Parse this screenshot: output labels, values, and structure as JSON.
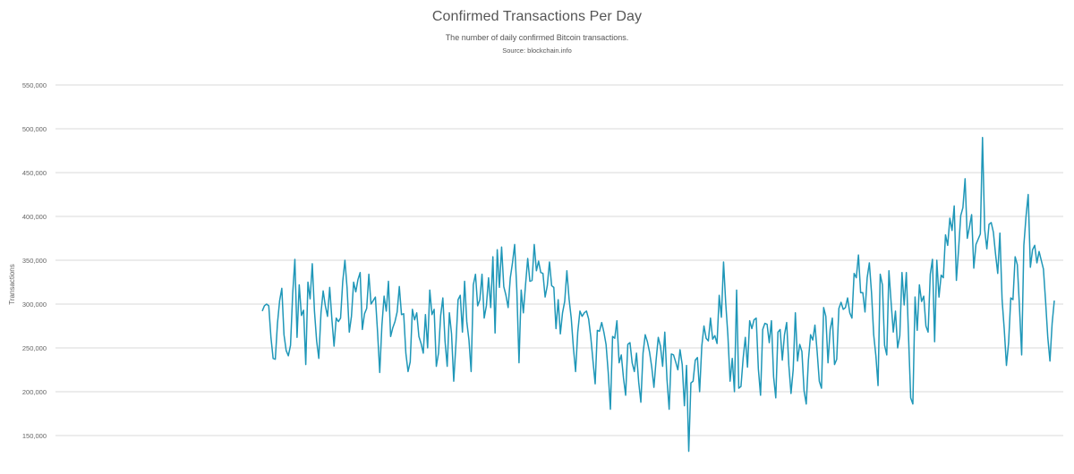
{
  "chart_data": {
    "type": "line",
    "title": "Confirmed Transactions Per Day",
    "subtitle": "The number of daily confirmed Bitcoin transactions.",
    "source": "Source: blockchain.info",
    "ylabel": "Transactions",
    "xlabel": "",
    "ylim": [
      130000,
      560000
    ],
    "yticks": [
      150000,
      200000,
      250000,
      300000,
      350000,
      400000,
      450000,
      500000,
      550000
    ],
    "ytick_labels": [
      "150,000",
      "200,000",
      "250,000",
      "300,000",
      "350,000",
      "400,000",
      "450,000",
      "500,000",
      "550,000"
    ],
    "grid": true,
    "line_color": "#1f97b8",
    "series": [
      {
        "values": [
          292000,
          298000,
          300000,
          298000,
          262000,
          238000,
          237000,
          278000,
          304000,
          318000,
          265000,
          247000,
          241000,
          253000,
          312000,
          351000,
          262000,
          322000,
          287000,
          293000,
          231000,
          325000,
          306000,
          346000,
          292000,
          258000,
          238000,
          290000,
          315000,
          298000,
          286000,
          319000,
          283000,
          252000,
          284000,
          280000,
          284000,
          326000,
          350000,
          318000,
          268000,
          286000,
          325000,
          314000,
          328000,
          336000,
          271000,
          289000,
          295000,
          334000,
          300000,
          304000,
          308000,
          268000,
          222000,
          276000,
          309000,
          292000,
          326000,
          263000,
          273000,
          280000,
          291000,
          320000,
          288000,
          289000,
          244000,
          223000,
          234000,
          294000,
          282000,
          290000,
          263000,
          255000,
          244000,
          288000,
          250000,
          316000,
          288000,
          294000,
          229000,
          244000,
          287000,
          307000,
          258000,
          229000,
          290000,
          266000,
          212000,
          254000,
          305000,
          310000,
          268000,
          326000,
          280000,
          259000,
          223000,
          322000,
          334000,
          298000,
          305000,
          334000,
          284000,
          298000,
          330000,
          296000,
          354000,
          267000,
          362000,
          319000,
          365000,
          320000,
          310000,
          296000,
          330000,
          347000,
          368000,
          316000,
          233000,
          316000,
          290000,
          322000,
          352000,
          326000,
          327000,
          368000,
          338000,
          349000,
          336000,
          335000,
          308000,
          321000,
          348000,
          321000,
          319000,
          272000,
          305000,
          266000,
          290000,
          303000,
          338000,
          306000,
          284000,
          250000,
          223000,
          268000,
          292000,
          286000,
          290000,
          292000,
          283000,
          262000,
          235000,
          209000,
          270000,
          269000,
          279000,
          268000,
          254000,
          222000,
          180000,
          263000,
          261000,
          281000,
          233000,
          242000,
          216000,
          196000,
          254000,
          256000,
          233000,
          223000,
          244000,
          211000,
          188000,
          244000,
          265000,
          257000,
          245000,
          228000,
          205000,
          236000,
          262000,
          252000,
          229000,
          268000,
          214000,
          180000,
          243000,
          242000,
          234000,
          225000,
          248000,
          231000,
          184000,
          230000,
          132000,
          210000,
          212000,
          236000,
          239000,
          200000,
          252000,
          275000,
          261000,
          258000,
          284000,
          260000,
          264000,
          255000,
          310000,
          285000,
          348000,
          301000,
          264000,
          212000,
          238000,
          200000,
          316000,
          204000,
          206000,
          238000,
          262000,
          228000,
          281000,
          272000,
          282000,
          284000,
          226000,
          196000,
          271000,
          278000,
          277000,
          256000,
          281000,
          217000,
          193000,
          268000,
          271000,
          236000,
          265000,
          279000,
          230000,
          198000,
          225000,
          290000,
          235000,
          254000,
          246000,
          201000,
          186000,
          236000,
          265000,
          259000,
          276000,
          246000,
          212000,
          204000,
          296000,
          286000,
          233000,
          271000,
          284000,
          231000,
          237000,
          295000,
          302000,
          294000,
          296000,
          307000,
          290000,
          284000,
          335000,
          330000,
          356000,
          313000,
          313000,
          291000,
          330000,
          347000,
          313000,
          265000,
          241000,
          207000,
          334000,
          322000,
          253000,
          242000,
          338000,
          302000,
          268000,
          292000,
          250000,
          264000,
          336000,
          299000,
          336000,
          264000,
          193000,
          186000,
          308000,
          270000,
          322000,
          303000,
          309000,
          275000,
          268000,
          334000,
          351000,
          257000,
          350000,
          308000,
          333000,
          330000,
          379000,
          367000,
          398000,
          384000,
          412000,
          327000,
          362000,
          401000,
          410000,
          443000,
          375000,
          388000,
          402000,
          341000,
          368000,
          374000,
          380000,
          490000,
          385000,
          363000,
          391000,
          393000,
          382000,
          357000,
          335000,
          381000,
          305000,
          271000,
          230000,
          256000,
          307000,
          305000,
          354000,
          345000,
          296000,
          242000,
          367000,
          400000,
          425000,
          342000,
          362000,
          367000,
          347000,
          360000,
          350000,
          340000,
          303000,
          262000,
          235000,
          278000,
          304000
        ]
      }
    ]
  }
}
